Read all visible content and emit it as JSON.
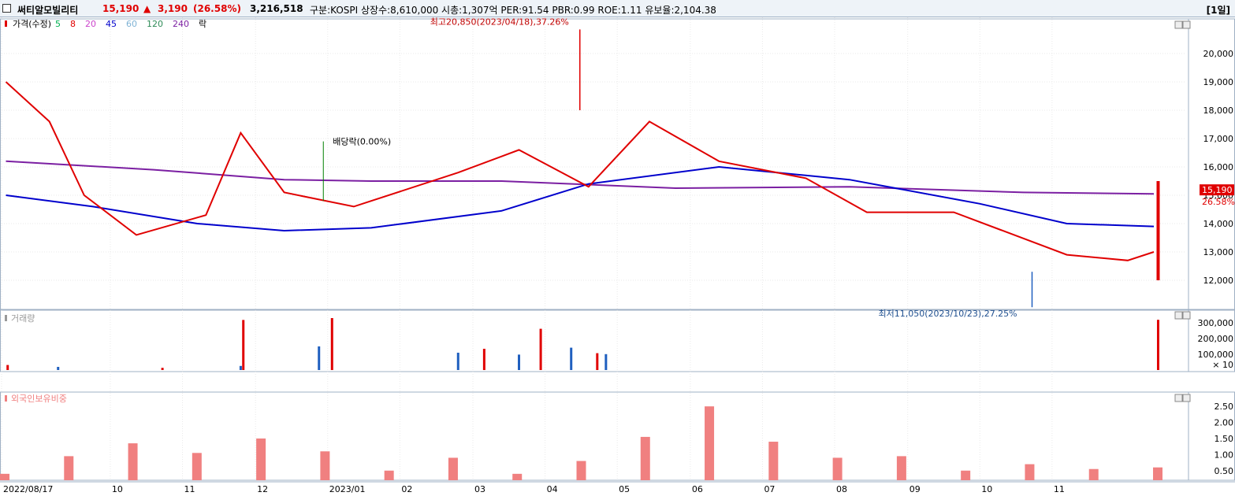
{
  "header": {
    "name": "써티알모빌리티",
    "price": "15,190",
    "change_arrow": "▲",
    "change": "3,190",
    "change_pct": "(26.58%)",
    "volume": "3,216,518",
    "info": "구분:KOSPI 상장수:8,610,000 시총:1,307억 PER:91.54 PBR:0.99 ROE:1.11 유보율:2,104.38",
    "timeframe": "[1일]"
  },
  "colors": {
    "up": "#e00000",
    "down": "#1f5fbf",
    "ma5": "#00b050",
    "ma8": "#e00000",
    "ma20": "#cc44cc",
    "ma45": "#0000cc",
    "ma60": "#7fb3d5",
    "ma120": "#2e8b57",
    "ma240": "#7b1fa2",
    "foreign": "#f08080"
  },
  "chart_data": [
    {
      "panel": "price",
      "type": "candlestick",
      "legend": [
        "가격(수정)",
        "5",
        "8",
        "20",
        "45",
        "60",
        "120",
        "240",
        "락"
      ],
      "y_ticks": [
        "20,000",
        "19,000",
        "18,000",
        "17,000",
        "16,000",
        "15,000",
        "14,000",
        "13,000",
        "12,000"
      ],
      "ylim": [
        11000,
        21000
      ],
      "x_ticks": [
        "2022/08/17",
        "10",
        "11",
        "12",
        "2023/01",
        "02",
        "03",
        "04",
        "05",
        "06",
        "07",
        "08",
        "09",
        "10",
        "11"
      ],
      "annotations": {
        "high": "최고20,850(2023/04/18),37.26%",
        "low": "최저11,050(2023/10/23),27.25%",
        "dividend": "배당락(0.00%)"
      },
      "last_price_label": "15,190",
      "last_pct_label": "26.58%",
      "series": [
        {
          "name": "240",
          "values": [
            [
              2022.63,
              16200
            ],
            [
              2022.8,
              15900
            ],
            [
              2022.95,
              15550
            ],
            [
              2023.05,
              15500
            ],
            [
              2023.2,
              15500
            ],
            [
              2023.4,
              15250
            ],
            [
              2023.6,
              15300
            ],
            [
              2023.8,
              15100
            ],
            [
              2023.95,
              15050
            ]
          ]
        },
        {
          "name": "45",
          "values": [
            [
              2022.63,
              15000
            ],
            [
              2022.73,
              14600
            ],
            [
              2022.85,
              14000
            ],
            [
              2022.95,
              13750
            ],
            [
              2023.05,
              13850
            ],
            [
              2023.2,
              14450
            ],
            [
              2023.3,
              15400
            ],
            [
              2023.45,
              16000
            ],
            [
              2023.6,
              15550
            ],
            [
              2023.75,
              14700
            ],
            [
              2023.85,
              14000
            ],
            [
              2023.95,
              13900
            ]
          ]
        },
        {
          "name": "8",
          "values": [
            [
              2022.63,
              19000
            ],
            [
              2022.68,
              17600
            ],
            [
              2022.72,
              15000
            ],
            [
              2022.78,
              13600
            ],
            [
              2022.86,
              14300
            ],
            [
              2022.9,
              17200
            ],
            [
              2022.95,
              15100
            ],
            [
              2023.03,
              14600
            ],
            [
              2023.15,
              15800
            ],
            [
              2023.22,
              16600
            ],
            [
              2023.3,
              15300
            ],
            [
              2023.37,
              17600
            ],
            [
              2023.45,
              16200
            ],
            [
              2023.55,
              15600
            ],
            [
              2023.62,
              14400
            ],
            [
              2023.72,
              14400
            ],
            [
              2023.85,
              12900
            ],
            [
              2023.92,
              12700
            ],
            [
              2023.95,
              13000
            ]
          ]
        }
      ],
      "candles": [
        {
          "date": "2023/04/18",
          "high": 20850
        },
        {
          "date": "2023/10/23",
          "low": 11050
        },
        {
          "date": "last",
          "close": 15190
        }
      ]
    },
    {
      "panel": "volume",
      "type": "bar",
      "legend": [
        "거래량"
      ],
      "y_ticks": [
        "300,000",
        "200,000",
        "100,000"
      ],
      "ylim": [
        0,
        350000
      ],
      "unit": "× 10",
      "values": [
        32000,
        20000,
        14000,
        26000,
        318000,
        150000,
        330000,
        110000,
        135000,
        98000,
        262000,
        142000,
        107000,
        101000,
        319000
      ]
    },
    {
      "panel": "foreign",
      "type": "bar",
      "legend": [
        "외국인보유비중"
      ],
      "y_ticks": [
        "2.50",
        "2.00",
        "1.50",
        "1.00",
        "0.50"
      ],
      "ylim": [
        0.2,
        2.7
      ],
      "values": [
        0.4,
        0.95,
        1.35,
        1.05,
        1.5,
        1.1,
        0.5,
        0.9,
        0.4,
        0.8,
        1.55,
        2.5,
        1.4,
        0.9,
        0.95,
        0.5,
        0.7,
        0.55,
        0.6
      ]
    }
  ]
}
